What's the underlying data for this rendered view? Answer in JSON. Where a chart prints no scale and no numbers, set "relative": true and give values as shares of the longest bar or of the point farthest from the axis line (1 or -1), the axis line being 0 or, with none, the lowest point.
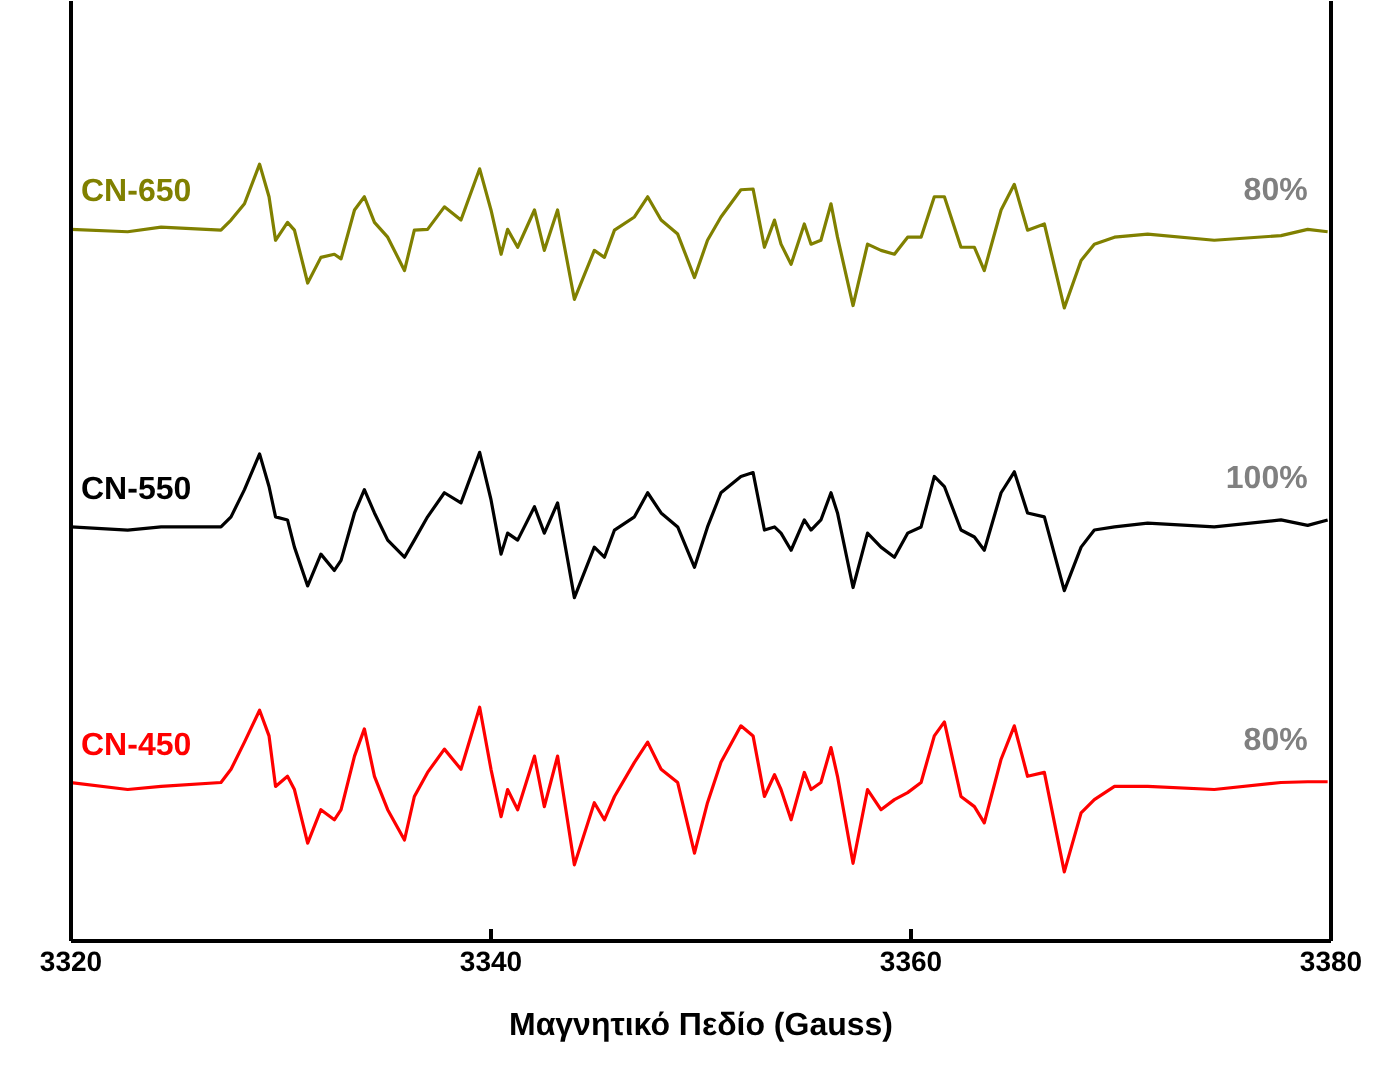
{
  "chart_data": {
    "type": "line",
    "relative": true,
    "xlabel": "Μαγνητικό Πεδίο (Gauss)",
    "xlim": [
      3320,
      3380
    ],
    "xticks": [
      3320,
      3340,
      3360,
      3380
    ],
    "tick_labels": "x",
    "grid": false,
    "legend": false,
    "marker": "none",
    "line_style": "solid",
    "x": [
      3320.0,
      3322.7,
      3324.29,
      3327.14,
      3327.62,
      3328.26,
      3328.98,
      3329.43,
      3329.74,
      3330.31,
      3330.64,
      3331.27,
      3331.9,
      3332.54,
      3332.86,
      3333.5,
      3333.97,
      3334.45,
      3335.08,
      3335.88,
      3336.35,
      3336.98,
      3337.78,
      3338.57,
      3339.46,
      3340.0,
      3340.48,
      3340.79,
      3341.27,
      3342.07,
      3342.54,
      3343.17,
      3343.97,
      3344.92,
      3345.4,
      3345.88,
      3346.83,
      3347.46,
      3348.1,
      3348.89,
      3349.69,
      3350.31,
      3350.95,
      3351.9,
      3352.48,
      3353.02,
      3353.5,
      3353.81,
      3354.29,
      3354.92,
      3355.24,
      3355.71,
      3356.19,
      3356.5,
      3357.24,
      3357.93,
      3358.57,
      3359.21,
      3359.84,
      3360.48,
      3361.11,
      3361.59,
      3362.38,
      3363.02,
      3363.49,
      3364.29,
      3364.92,
      3365.55,
      3366.35,
      3367.3,
      3368.1,
      3368.73,
      3369.69,
      3371.27,
      3374.44,
      3377.62,
      3378.89,
      3379.84
    ],
    "series": [
      {
        "name": "CN-650",
        "color": "#808000",
        "values": [
          0.916,
          0.913,
          0.919,
          0.915,
          0.928,
          0.949,
          1.0,
          0.958,
          0.902,
          0.925,
          0.915,
          0.847,
          0.88,
          0.884,
          0.878,
          0.941,
          0.958,
          0.925,
          0.906,
          0.863,
          0.915,
          0.916,
          0.945,
          0.928,
          0.994,
          0.941,
          0.884,
          0.916,
          0.893,
          0.941,
          0.889,
          0.941,
          0.826,
          0.889,
          0.88,
          0.915,
          0.932,
          0.958,
          0.928,
          0.91,
          0.854,
          0.902,
          0.932,
          0.967,
          0.968,
          0.893,
          0.928,
          0.897,
          0.871,
          0.923,
          0.897,
          0.902,
          0.949,
          0.906,
          0.818,
          0.897,
          0.889,
          0.884,
          0.906,
          0.906,
          0.958,
          0.958,
          0.893,
          0.893,
          0.863,
          0.941,
          0.974,
          0.915,
          0.923,
          0.815,
          0.876,
          0.897,
          0.906,
          0.91,
          0.902,
          0.908,
          0.916,
          0.913
        ]
      },
      {
        "name": "CN-550",
        "color": "#000000",
        "values": [
          0.533,
          0.529,
          0.533,
          0.533,
          0.546,
          0.581,
          0.627,
          0.585,
          0.546,
          0.542,
          0.507,
          0.457,
          0.498,
          0.477,
          0.49,
          0.551,
          0.581,
          0.551,
          0.516,
          0.494,
          0.516,
          0.546,
          0.577,
          0.564,
          0.629,
          0.568,
          0.498,
          0.525,
          0.516,
          0.559,
          0.525,
          0.564,
          0.442,
          0.507,
          0.494,
          0.529,
          0.546,
          0.577,
          0.551,
          0.533,
          0.481,
          0.533,
          0.577,
          0.598,
          0.603,
          0.529,
          0.533,
          0.525,
          0.503,
          0.542,
          0.529,
          0.542,
          0.577,
          0.551,
          0.455,
          0.525,
          0.507,
          0.494,
          0.525,
          0.533,
          0.598,
          0.585,
          0.529,
          0.52,
          0.503,
          0.577,
          0.604,
          0.551,
          0.546,
          0.451,
          0.507,
          0.529,
          0.533,
          0.538,
          0.533,
          0.542,
          0.535,
          0.542
        ]
      },
      {
        "name": "CN-450",
        "color": "#ff0000",
        "values": [
          0.204,
          0.195,
          0.199,
          0.204,
          0.221,
          0.256,
          0.297,
          0.264,
          0.199,
          0.212,
          0.195,
          0.126,
          0.169,
          0.156,
          0.169,
          0.238,
          0.273,
          0.212,
          0.169,
          0.13,
          0.186,
          0.217,
          0.247,
          0.221,
          0.301,
          0.221,
          0.16,
          0.195,
          0.169,
          0.238,
          0.173,
          0.238,
          0.098,
          0.178,
          0.156,
          0.186,
          0.23,
          0.256,
          0.221,
          0.204,
          0.113,
          0.178,
          0.23,
          0.277,
          0.264,
          0.186,
          0.214,
          0.195,
          0.156,
          0.217,
          0.195,
          0.204,
          0.249,
          0.212,
          0.1,
          0.195,
          0.169,
          0.182,
          0.191,
          0.204,
          0.264,
          0.282,
          0.186,
          0.173,
          0.152,
          0.234,
          0.277,
          0.212,
          0.217,
          0.089,
          0.165,
          0.182,
          0.199,
          0.199,
          0.195,
          0.204,
          0.205,
          0.205
        ]
      }
    ],
    "annotations": [
      "80%",
      "100%",
      "80%"
    ]
  }
}
